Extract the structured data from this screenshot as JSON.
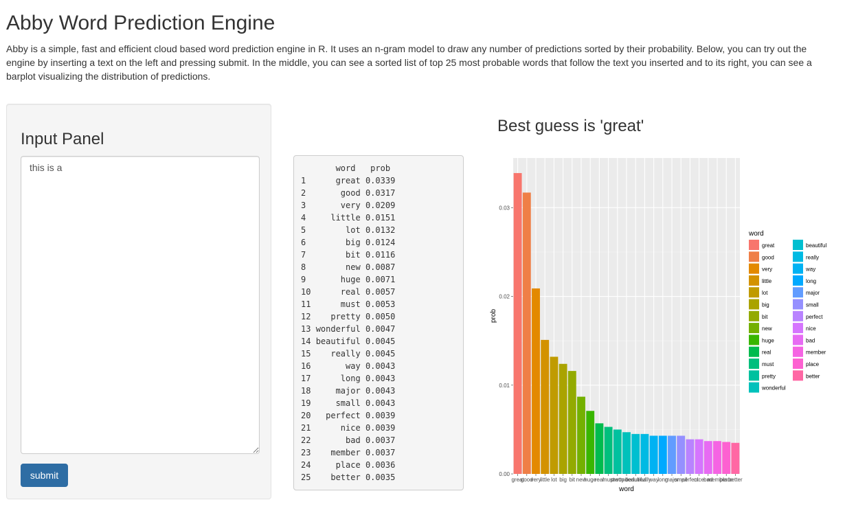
{
  "page": {
    "title": "Abby Word Prediction Engine",
    "intro": "Abby is a simple, fast and efficient cloud based word prediction engine in R. It uses an n-gram model to draw any number of predictions sorted by their probability. Below, you can try out the engine by inserting a text on the left and pressing submit. In the middle, you can see a sorted list of top 25 most probable words that follow the text you inserted and to its right, you can see a barplot visualizing the distribution of predictions."
  },
  "input_panel": {
    "title": "Input Panel",
    "text_value": "this is a",
    "submit_label": "submit"
  },
  "table": {
    "header": "       word   prob",
    "rows": [
      {
        "n": "1",
        "word": "great",
        "prob": "0.0339"
      },
      {
        "n": "2",
        "word": "good",
        "prob": "0.0317"
      },
      {
        "n": "3",
        "word": "very",
        "prob": "0.0209"
      },
      {
        "n": "4",
        "word": "little",
        "prob": "0.0151"
      },
      {
        "n": "5",
        "word": "lot",
        "prob": "0.0132"
      },
      {
        "n": "6",
        "word": "big",
        "prob": "0.0124"
      },
      {
        "n": "7",
        "word": "bit",
        "prob": "0.0116"
      },
      {
        "n": "8",
        "word": "new",
        "prob": "0.0087"
      },
      {
        "n": "9",
        "word": "huge",
        "prob": "0.0071"
      },
      {
        "n": "10",
        "word": "real",
        "prob": "0.0057"
      },
      {
        "n": "11",
        "word": "must",
        "prob": "0.0053"
      },
      {
        "n": "12",
        "word": "pretty",
        "prob": "0.0050"
      },
      {
        "n": "13",
        "word": "wonderful",
        "prob": "0.0047"
      },
      {
        "n": "14",
        "word": "beautiful",
        "prob": "0.0045"
      },
      {
        "n": "15",
        "word": "really",
        "prob": "0.0045"
      },
      {
        "n": "16",
        "word": "way",
        "prob": "0.0043"
      },
      {
        "n": "17",
        "word": "long",
        "prob": "0.0043"
      },
      {
        "n": "18",
        "word": "major",
        "prob": "0.0043"
      },
      {
        "n": "19",
        "word": "small",
        "prob": "0.0043"
      },
      {
        "n": "20",
        "word": "perfect",
        "prob": "0.0039"
      },
      {
        "n": "21",
        "word": "nice",
        "prob": "0.0039"
      },
      {
        "n": "22",
        "word": "bad",
        "prob": "0.0037"
      },
      {
        "n": "23",
        "word": "member",
        "prob": "0.0037"
      },
      {
        "n": "24",
        "word": "place",
        "prob": "0.0036"
      },
      {
        "n": "25",
        "word": "better",
        "prob": "0.0035"
      }
    ]
  },
  "plot": {
    "title": "Best guess is 'great'"
  },
  "chart_data": {
    "type": "bar",
    "categories": [
      "great",
      "good",
      "very",
      "little",
      "lot",
      "big",
      "bit",
      "new",
      "huge",
      "real",
      "must",
      "pretty",
      "wonderful",
      "beautiful",
      "really",
      "way",
      "long",
      "major",
      "small",
      "perfect",
      "nice",
      "bad",
      "member",
      "place",
      "better"
    ],
    "values": [
      0.0339,
      0.0317,
      0.0209,
      0.0151,
      0.0132,
      0.0124,
      0.0116,
      0.0087,
      0.0071,
      0.0057,
      0.0053,
      0.005,
      0.0047,
      0.0045,
      0.0045,
      0.0043,
      0.0043,
      0.0043,
      0.0043,
      0.0039,
      0.0039,
      0.0037,
      0.0037,
      0.0036,
      0.0035
    ],
    "colors": [
      "#F8766D",
      "#EF7F47",
      "#E38900",
      "#D39200",
      "#C09B00",
      "#AAA300",
      "#93AA00",
      "#74B000",
      "#39B600",
      "#00BB4E",
      "#00BF7D",
      "#00C19F",
      "#00C1BB",
      "#00BFD0",
      "#00BAE3",
      "#00B2F3",
      "#00A9FF",
      "#619CFF",
      "#9590FF",
      "#B983FF",
      "#D575FE",
      "#E76BF3",
      "#F564E3",
      "#FD61D1",
      "#FF67A4"
    ],
    "xlabel": "word",
    "ylabel": "prob",
    "ylim": [
      0,
      0.0356
    ],
    "yticks": [
      0.0,
      0.01,
      0.02,
      0.03
    ],
    "ytick_labels": [
      "0.00",
      "0.01",
      "0.02",
      "0.03"
    ],
    "legend_title": "word",
    "legend_position": "right",
    "grid": true
  }
}
